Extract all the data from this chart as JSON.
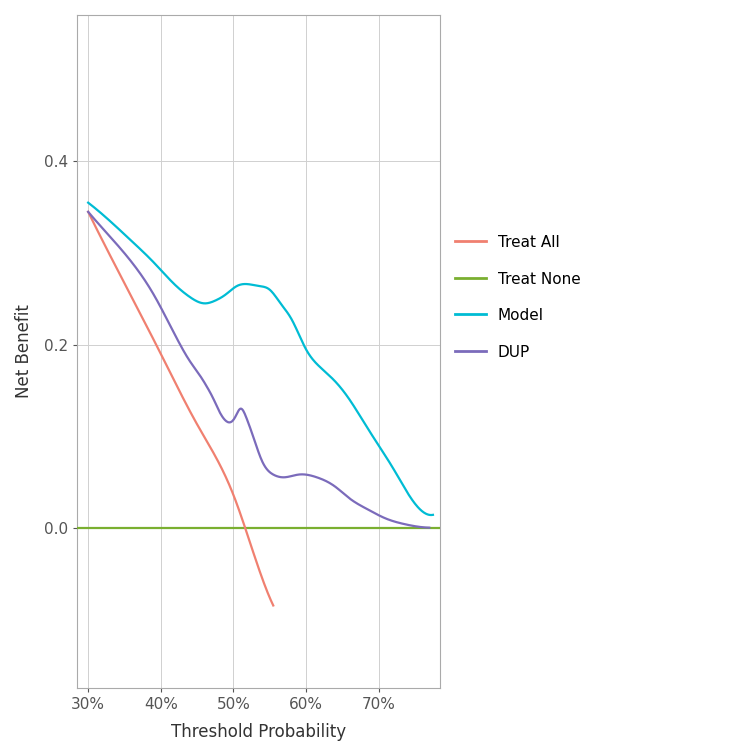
{
  "title": "",
  "xlabel": "Threshold Probability",
  "ylabel": "Net Benefit",
  "xlim": [
    0.285,
    0.785
  ],
  "ylim": [
    -0.175,
    0.56
  ],
  "yticks": [
    0.0,
    0.2,
    0.4
  ],
  "xticks": [
    0.3,
    0.4,
    0.5,
    0.6,
    0.7
  ],
  "colors": {
    "treat_all": "#F08070",
    "treat_none": "#7AAF30",
    "model": "#00BCD4",
    "dup": "#7B6BBB"
  },
  "legend": [
    "Treat All",
    "Treat None",
    "Model",
    "DUP"
  ],
  "background_color": "#FFFFFF",
  "grid_color": "#D0D0D0",
  "treat_all": {
    "x": [
      0.3,
      0.35,
      0.4,
      0.45,
      0.5,
      0.53,
      0.555
    ],
    "y": [
      0.345,
      0.267,
      0.19,
      0.113,
      0.036,
      -0.033,
      -0.085
    ]
  },
  "treat_none": {
    "x": [
      0.285,
      0.785
    ],
    "y": [
      0.0,
      0.0
    ]
  },
  "model": {
    "x": [
      0.3,
      0.33,
      0.36,
      0.39,
      0.42,
      0.44,
      0.46,
      0.475,
      0.49,
      0.505,
      0.52,
      0.535,
      0.55,
      0.565,
      0.58,
      0.6,
      0.62,
      0.64,
      0.66,
      0.68,
      0.7,
      0.72,
      0.74,
      0.76,
      0.775
    ],
    "y": [
      0.355,
      0.335,
      0.313,
      0.29,
      0.265,
      0.252,
      0.245,
      0.248,
      0.255,
      0.264,
      0.266,
      0.264,
      0.26,
      0.245,
      0.228,
      0.195,
      0.175,
      0.16,
      0.14,
      0.115,
      0.09,
      0.065,
      0.038,
      0.018,
      0.014
    ]
  },
  "dup": {
    "x": [
      0.3,
      0.33,
      0.36,
      0.39,
      0.42,
      0.44,
      0.455,
      0.465,
      0.473,
      0.48,
      0.488,
      0.495,
      0.502,
      0.51,
      0.518,
      0.528,
      0.54,
      0.555,
      0.57,
      0.59,
      0.615,
      0.64,
      0.66,
      0.685,
      0.71,
      0.735,
      0.755,
      0.77
    ],
    "y": [
      0.345,
      0.318,
      0.29,
      0.255,
      0.21,
      0.182,
      0.165,
      0.152,
      0.14,
      0.128,
      0.118,
      0.115,
      0.12,
      0.13,
      0.12,
      0.098,
      0.072,
      0.058,
      0.055,
      0.058,
      0.055,
      0.045,
      0.032,
      0.02,
      0.01,
      0.004,
      0.001,
      0.0
    ]
  }
}
